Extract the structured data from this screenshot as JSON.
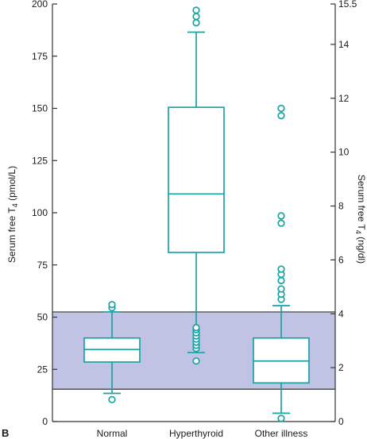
{
  "chart_data": {
    "type": "box",
    "panel_label": "B",
    "ylabel_left": {
      "base": "Serum free T",
      "sub": "4",
      "unit": " (pmol/L)"
    },
    "ylabel_right": {
      "base": "Serum free T",
      "sub": "4",
      "unit": " (ng/dl)"
    },
    "ylim_left": [
      0,
      200
    ],
    "ylim_right": [
      0,
      15.5
    ],
    "yticks_left": [
      "0",
      "25",
      "50",
      "75",
      "100",
      "125",
      "150",
      "175",
      "200"
    ],
    "yticks_right": [
      "0",
      "2",
      "4",
      "6",
      "8",
      "10",
      "12",
      "14",
      "15.5"
    ],
    "yticks_right_values": [
      0,
      2,
      4,
      6,
      8,
      10,
      12,
      14,
      15.5
    ],
    "reference_range": [
      15.5,
      52.5
    ],
    "categories": [
      "Normal",
      "Hyperthyroid",
      "Other illness"
    ],
    "boxes": [
      {
        "whisker_low": 13.5,
        "q1": 28.5,
        "median": 34.5,
        "q3": 40.0,
        "whisker_high": 52.5,
        "outliers": [
          10.5,
          54.5,
          56.0
        ]
      },
      {
        "whisker_low": 33.0,
        "q1": 81.0,
        "median": 109.0,
        "q3": 150.5,
        "whisker_high": 186.5,
        "outliers": [
          29.0,
          35.0,
          36.5,
          38.0,
          39.5,
          41.0,
          42.5,
          44.0,
          45.0,
          191.0,
          194.0,
          197.0
        ]
      },
      {
        "whisker_low": 4.0,
        "q1": 18.5,
        "median": 29.0,
        "q3": 40.0,
        "whisker_high": 55.5,
        "outliers": [
          1.5,
          58.5,
          61.0,
          63.5,
          67.5,
          70.5,
          73.0,
          95.0,
          98.5,
          146.5,
          150.0
        ]
      }
    ],
    "colors": {
      "box": "#1aa3a3",
      "band": "#c0c3e3",
      "band_edge": "#333333",
      "axis": "#333333"
    }
  }
}
